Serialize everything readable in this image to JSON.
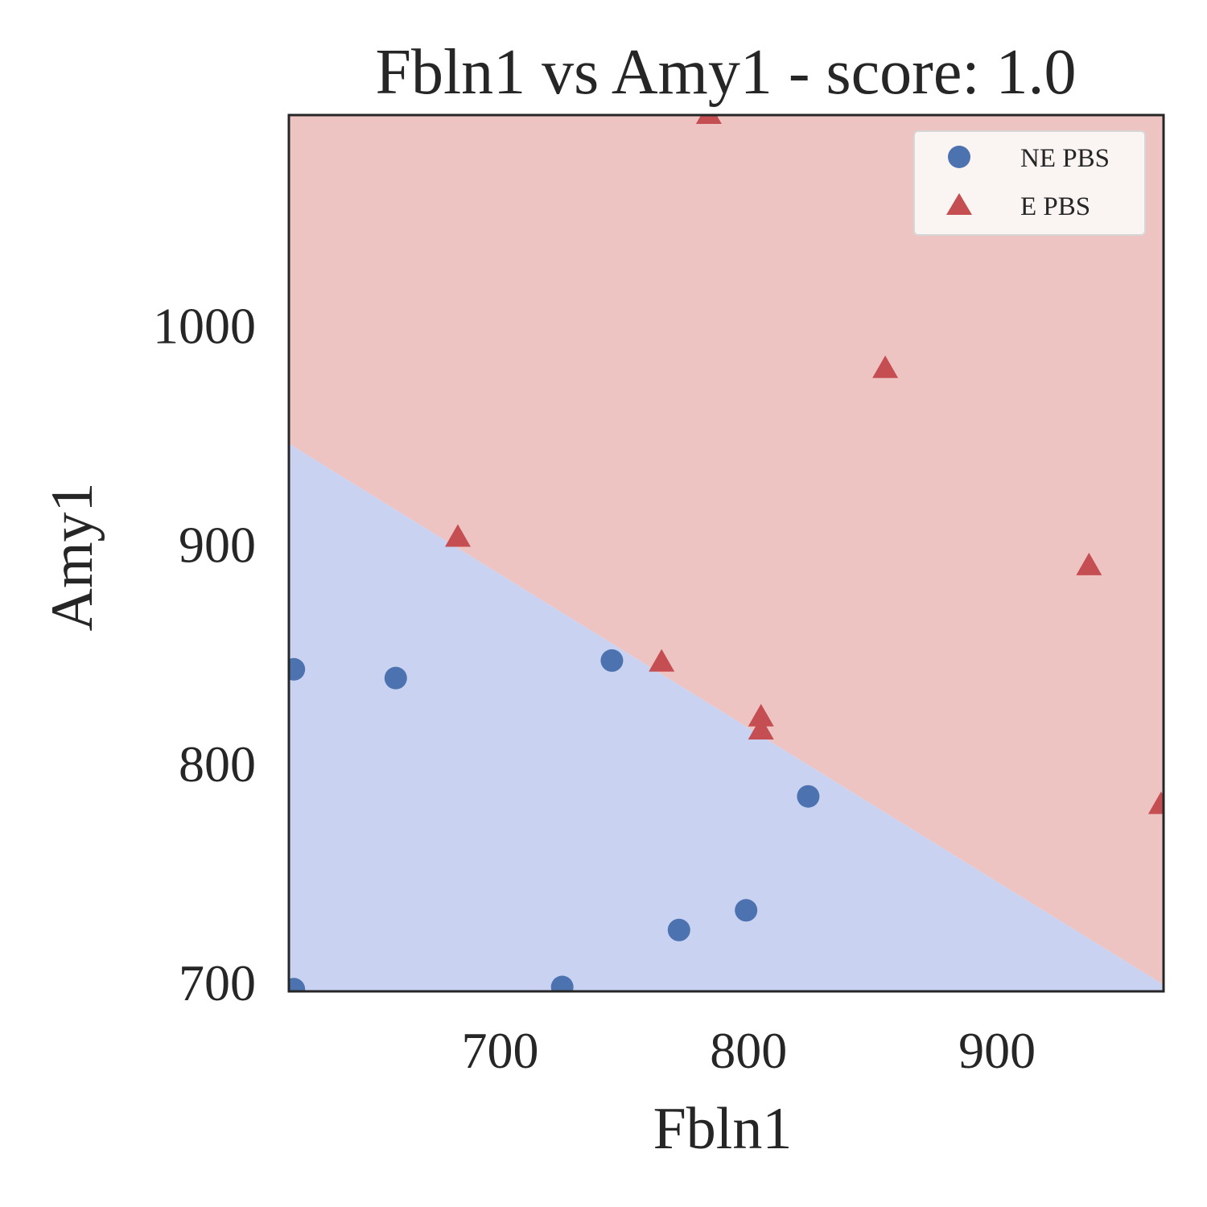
{
  "chart_data": {
    "type": "scatter",
    "title": "Fbln1 vs Amy1 - score: 1.0",
    "xlabel": "Fbln1",
    "ylabel": "Amy1",
    "xlim": [
      615,
      967
    ],
    "ylim": [
      696,
      1096
    ],
    "xticks": [
      700,
      800,
      900
    ],
    "yticks": [
      700,
      800,
      900,
      1000
    ],
    "grid": false,
    "legend_position": "top-right",
    "decision_boundary": [
      [
        615,
        946
      ],
      [
        967,
        699
      ]
    ],
    "region_colors": {
      "above": "#eec4c3",
      "below": "#c9d2f1"
    },
    "series": [
      {
        "name": "NE PBS",
        "marker": "circle",
        "color": "#4c72b0",
        "points": [
          [
            617,
            843
          ],
          [
            617,
            697
          ],
          [
            658,
            839
          ],
          [
            725,
            698
          ],
          [
            745,
            847
          ],
          [
            772,
            724
          ],
          [
            799,
            733
          ],
          [
            824,
            785
          ]
        ]
      },
      {
        "name": "E PBS",
        "marker": "triangle",
        "color": "#c44e52",
        "points": [
          [
            683,
            903
          ],
          [
            765,
            846
          ],
          [
            784,
            1096
          ],
          [
            805,
            821
          ],
          [
            805,
            815
          ],
          [
            855,
            980
          ],
          [
            937,
            890
          ],
          [
            966,
            781
          ]
        ]
      }
    ]
  }
}
